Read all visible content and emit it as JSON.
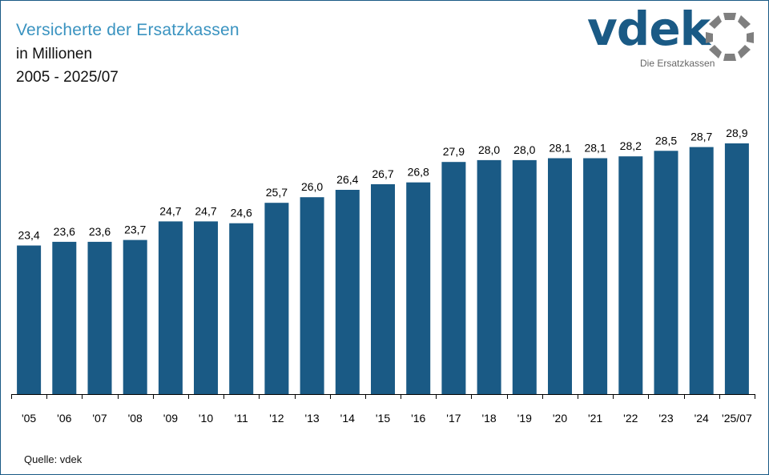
{
  "header": {
    "title": "Versicherte der Ersatzkassen",
    "subtitle_unit": "in Millionen",
    "subtitle_period": "2005 - 2025/07"
  },
  "logo": {
    "wordmark": "vdek",
    "tagline": "Die Ersatzkassen",
    "icon": "ring-of-segments-icon"
  },
  "source": "Quelle: vdek",
  "colors": {
    "bar": "#1a5a85",
    "title": "#3a93c0",
    "frame": "#1a5a85"
  },
  "chart_data": {
    "type": "bar",
    "categories": [
      "'05",
      "'06",
      "'07",
      "'08",
      "'09",
      "'10",
      "'11",
      "'12",
      "'13",
      "'14",
      "'15",
      "'16",
      "'17",
      "'18",
      "'19",
      "'20",
      "'21",
      "'22",
      "'23",
      "'24",
      "'25/07"
    ],
    "values": [
      23.4,
      23.6,
      23.6,
      23.7,
      24.7,
      24.7,
      24.6,
      25.7,
      26.0,
      26.4,
      26.7,
      26.8,
      27.9,
      28.0,
      28.0,
      28.1,
      28.1,
      28.2,
      28.5,
      28.7,
      28.9
    ],
    "value_labels": [
      "23,4",
      "23,6",
      "23,6",
      "23,7",
      "24,7",
      "24,7",
      "24,6",
      "25,7",
      "26,0",
      "26,4",
      "26,7",
      "26,8",
      "27,9",
      "28,0",
      "28,0",
      "28,1",
      "28,1",
      "28,2",
      "28,5",
      "28,7",
      "28,9"
    ],
    "title": "Versicherte der Ersatzkassen",
    "xlabel": "",
    "ylabel": "",
    "ylim": [
      15.4,
      28.9
    ],
    "grid": false,
    "y_axis_visible": false
  }
}
